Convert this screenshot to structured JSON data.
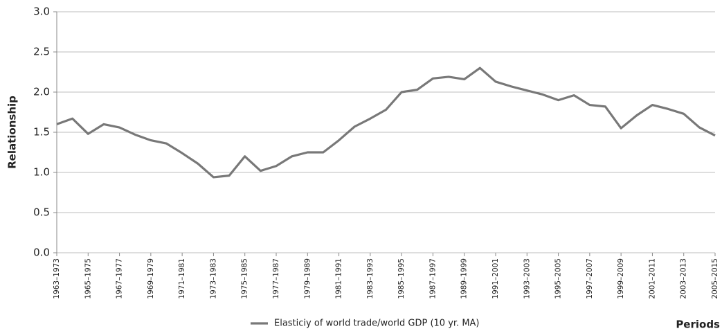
{
  "chart_data": {
    "type": "line",
    "y_label": "Relationship",
    "x_label": "Periods",
    "categories": [
      "1963–1973",
      null,
      "1965–1975",
      null,
      "1967–1977",
      null,
      "1969–1979",
      null,
      "1971–1981",
      null,
      "1973–1983",
      null,
      "1975–1985",
      null,
      "1977–1987",
      null,
      "1979–1989",
      null,
      "1981–1991",
      null,
      "1983–1993",
      null,
      "1985–1995",
      null,
      "1987–1997",
      null,
      "1989–1999",
      null,
      "1991–2001",
      null,
      "1993–2003",
      null,
      "1995–2005",
      null,
      "1997–2007",
      null,
      "1999–2009",
      null,
      "2001–2011",
      null,
      "2003–2013",
      null,
      "2005–2015"
    ],
    "series": [
      {
        "name": "Elasticiy of world trade/world GDP (10 yr. MA)",
        "color": "#787878",
        "values": [
          1.6,
          1.67,
          1.48,
          1.6,
          1.56,
          1.47,
          1.4,
          1.36,
          1.24,
          1.11,
          0.94,
          0.96,
          1.2,
          1.02,
          1.08,
          1.2,
          1.25,
          1.25,
          1.4,
          1.57,
          1.67,
          1.78,
          2.0,
          2.03,
          2.17,
          2.19,
          2.16,
          2.3,
          2.13,
          2.07,
          2.02,
          1.97,
          1.9,
          1.96,
          1.84,
          1.82,
          1.55,
          1.71,
          1.84,
          1.79,
          1.73,
          1.56,
          1.46
        ]
      }
    ],
    "ylim": [
      0,
      3
    ],
    "yticks": [
      {
        "value": 0,
        "label": "0.0"
      },
      0.5,
      {
        "value": 1,
        "label": "1.0"
      },
      1.5,
      {
        "value": 2,
        "label": "2.0"
      },
      2.5,
      {
        "value": 3,
        "label": "3.0"
      }
    ],
    "grid": true,
    "legend": "bottom"
  }
}
